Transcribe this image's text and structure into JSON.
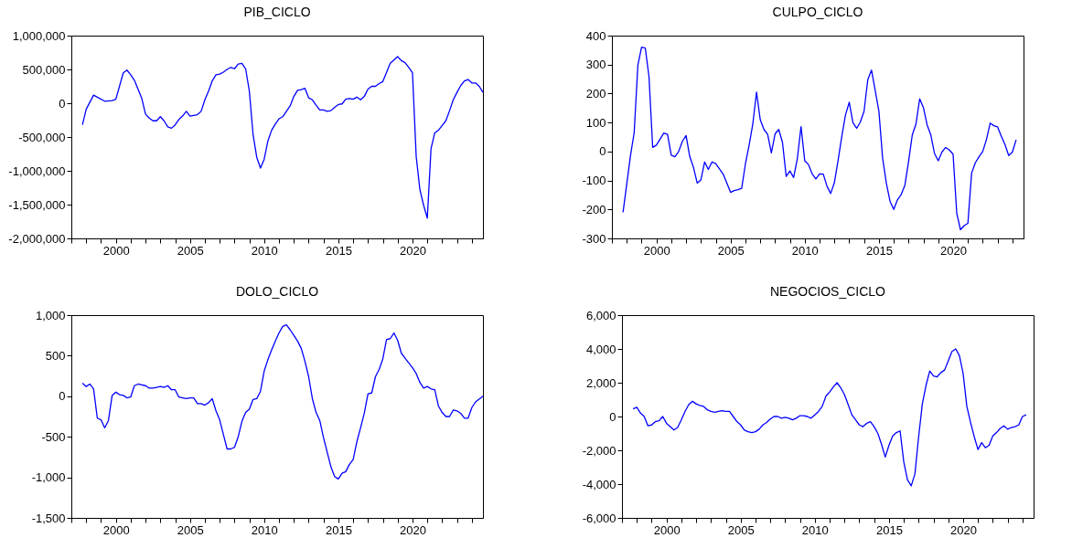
{
  "chart_data": [
    {
      "type": "line",
      "title": "PIB_CICLO",
      "xlim": [
        1997,
        2024.75
      ],
      "ylim": [
        -2000000,
        1000000
      ],
      "yticks": [
        {
          "value": -2000000,
          "label": "-2,000,000"
        },
        {
          "value": -1500000,
          "label": "-1,500,000"
        },
        {
          "value": -1000000,
          "label": "-1,000,000"
        },
        {
          "value": -500000,
          "label": "-500,000"
        },
        0,
        {
          "value": 500000,
          "label": "500,000"
        },
        {
          "value": 1000000,
          "label": "1,000,000"
        }
      ],
      "grid": false,
      "xticks": [
        {
          "value": 1997,
          "label": null
        },
        {
          "value": 1998,
          "label": null
        },
        {
          "value": 1999,
          "label": null
        },
        2000,
        {
          "value": 2001,
          "label": null
        },
        {
          "value": 2002,
          "label": null
        },
        {
          "value": 2003,
          "label": null
        },
        {
          "value": 2004,
          "label": null
        },
        2005,
        {
          "value": 2006,
          "label": null
        },
        {
          "value": 2007,
          "label": null
        },
        {
          "value": 2008,
          "label": null
        },
        {
          "value": 2009,
          "label": null
        },
        2010,
        {
          "value": 2011,
          "label": null
        },
        {
          "value": 2012,
          "label": null
        },
        {
          "value": 2013,
          "label": null
        },
        {
          "value": 2014,
          "label": null
        },
        2015,
        {
          "value": 2016,
          "label": null
        },
        {
          "value": 2017,
          "label": null
        },
        {
          "value": 2018,
          "label": null
        },
        {
          "value": 2019,
          "label": null
        },
        2020,
        {
          "value": 2021,
          "label": null
        },
        {
          "value": 2022,
          "label": null
        },
        {
          "value": 2023,
          "label": null
        },
        {
          "value": 2024,
          "label": null
        }
      ],
      "x": [
        1997.75,
        1998,
        1998.5,
        1998.75,
        1999.25,
        1999.75,
        2000,
        2000.5,
        2000.75,
        2001,
        2001.25,
        2001.75,
        2002,
        2002.25,
        2002.5,
        2002.75,
        2003,
        2003.25,
        2003.5,
        2003.75,
        2004,
        2004.25,
        2004.5,
        2004.75,
        2005,
        2005.5,
        2005.75,
        2006,
        2006.25,
        2006.5,
        2006.75,
        2007,
        2007.25,
        2007.5,
        2007.75,
        2008,
        2008.25,
        2008.5,
        2008.75,
        2009,
        2009.25,
        2009.5,
        2009.75,
        2010,
        2010.25,
        2010.5,
        2010.75,
        2011,
        2011.25,
        2011.5,
        2011.75,
        2012,
        2012.25,
        2012.5,
        2012.75,
        2013,
        2013.25,
        2013.5,
        2013.75,
        2014,
        2014.25,
        2014.5,
        2014.75,
        2015,
        2015.25,
        2015.5,
        2015.75,
        2016,
        2016.25,
        2016.5,
        2016.75,
        2017,
        2017.25,
        2017.5,
        2017.75,
        2018,
        2018.5,
        2019,
        2019.25,
        2019.5,
        2019.75,
        2020,
        2020.25,
        2020.5,
        2020.75,
        2021,
        2021.25,
        2021.5,
        2021.75,
        2022,
        2022.25,
        2022.5,
        2022.75,
        2023,
        2023.25,
        2023.5,
        2023.75,
        2024,
        2024.25,
        2024.5,
        2024.75
      ],
      "series": [
        {
          "color": "#0000ff",
          "values": [
            -320000,
            -90000,
            120000,
            90000,
            30000,
            40000,
            60000,
            450000,
            490000,
            420000,
            340000,
            70000,
            -160000,
            -220000,
            -260000,
            -260000,
            -200000,
            -260000,
            -350000,
            -370000,
            -320000,
            -240000,
            -190000,
            -120000,
            -190000,
            -170000,
            -120000,
            50000,
            180000,
            330000,
            420000,
            430000,
            460000,
            500000,
            530000,
            510000,
            580000,
            590000,
            510000,
            180000,
            -460000,
            -800000,
            -960000,
            -830000,
            -560000,
            -400000,
            -310000,
            -230000,
            -200000,
            -120000,
            -40000,
            100000,
            190000,
            200000,
            220000,
            80000,
            50000,
            -30000,
            -100000,
            -100000,
            -120000,
            -110000,
            -60000,
            -20000,
            -10000,
            60000,
            70000,
            60000,
            90000,
            50000,
            100000,
            210000,
            250000,
            250000,
            290000,
            320000,
            590000,
            690000,
            630000,
            600000,
            530000,
            450000,
            -790000,
            -1280000,
            -1510000,
            -1700000,
            -670000,
            -440000,
            -400000,
            -330000,
            -260000,
            -110000,
            50000,
            160000,
            260000,
            330000,
            350000,
            300000,
            300000,
            250000,
            160000
          ]
        }
      ]
    },
    {
      "type": "line",
      "title": "CULPO_CICLO",
      "xlim": [
        1997,
        2024.75
      ],
      "ylim": [
        -300,
        400
      ],
      "yticks": [
        {
          "value": -300,
          "label": "-300"
        },
        {
          "value": -200,
          "label": "-200"
        },
        {
          "value": -100,
          "label": "-100"
        },
        0,
        100,
        200,
        300,
        400
      ],
      "grid": false,
      "xticks": [
        {
          "value": 1997,
          "label": null
        },
        {
          "value": 1998,
          "label": null
        },
        {
          "value": 1999,
          "label": null
        },
        2000,
        {
          "value": 2001,
          "label": null
        },
        {
          "value": 2002,
          "label": null
        },
        {
          "value": 2003,
          "label": null
        },
        {
          "value": 2004,
          "label": null
        },
        2005,
        {
          "value": 2006,
          "label": null
        },
        {
          "value": 2007,
          "label": null
        },
        {
          "value": 2008,
          "label": null
        },
        {
          "value": 2009,
          "label": null
        },
        2010,
        {
          "value": 2011,
          "label": null
        },
        {
          "value": 2012,
          "label": null
        },
        {
          "value": 2013,
          "label": null
        },
        {
          "value": 2014,
          "label": null
        },
        2015,
        {
          "value": 2016,
          "label": null
        },
        {
          "value": 2017,
          "label": null
        },
        {
          "value": 2018,
          "label": null
        },
        {
          "value": 2019,
          "label": null
        },
        2020,
        {
          "value": 2021,
          "label": null
        },
        {
          "value": 2022,
          "label": null
        },
        {
          "value": 2023,
          "label": null
        },
        {
          "value": 2024,
          "label": null
        }
      ],
      "x": [
        1997.75,
        1998.25,
        1998.5,
        1998.75,
        1999,
        1999.25,
        1999.5,
        1999.75,
        2000,
        2000.5,
        2000.75,
        2001,
        2001.25,
        2001.5,
        2001.75,
        2002,
        2002.25,
        2002.5,
        2002.75,
        2003,
        2003.25,
        2003.5,
        2003.75,
        2004,
        2004.25,
        2004.5,
        2005,
        2005.25,
        2005.5,
        2005.75,
        2006,
        2006.25,
        2006.5,
        2006.75,
        2007,
        2007.25,
        2007.5,
        2007.75,
        2008,
        2008.25,
        2008.5,
        2008.75,
        2009,
        2009.25,
        2009.5,
        2009.75,
        2010,
        2010.25,
        2010.5,
        2010.75,
        2011,
        2011.25,
        2011.5,
        2011.75,
        2012,
        2012.25,
        2012.5,
        2012.75,
        2013,
        2013.25,
        2013.5,
        2013.75,
        2014,
        2014.25,
        2014.5,
        2014.75,
        2015,
        2015.25,
        2015.5,
        2015.75,
        2016,
        2016.25,
        2016.5,
        2016.75,
        2017,
        2017.25,
        2017.5,
        2017.75,
        2018,
        2018.25,
        2018.5,
        2018.75,
        2019,
        2019.25,
        2019.5,
        2019.75,
        2020,
        2020.25,
        2020.5,
        2020.75,
        2021,
        2021.25,
        2021.5,
        2021.75,
        2022,
        2022.25,
        2022.5,
        2022.75,
        2023,
        2023.25,
        2023.5,
        2023.75,
        2024,
        2024.25
      ],
      "series": [
        {
          "color": "#0000ff",
          "values": [
            -210,
            -15,
            65,
            298,
            360,
            357,
            258,
            14,
            22,
            64,
            59,
            -13,
            -18,
            0,
            35,
            55,
            -18,
            -55,
            -109,
            -98,
            -36,
            -62,
            -36,
            -42,
            -60,
            -78,
            -141,
            -135,
            -132,
            -127,
            -43,
            22,
            95,
            205,
            110,
            76,
            59,
            -5,
            61,
            76,
            31,
            -86,
            -67,
            -90,
            -25,
            86,
            -32,
            -45,
            -77,
            -95,
            -77,
            -78,
            -120,
            -145,
            -107,
            -30,
            53,
            127,
            170,
            99,
            80,
            102,
            139,
            248,
            281,
            211,
            139,
            -23,
            -109,
            -172,
            -200,
            -167,
            -149,
            -117,
            -35,
            57,
            95,
            182,
            152,
            92,
            57,
            -7,
            -32,
            -2,
            14,
            5,
            -9,
            -214,
            -270,
            -256,
            -248,
            -75,
            -39,
            -18,
            0,
            41,
            98,
            89,
            85,
            53,
            24,
            -14,
            -2,
            40
          ]
        }
      ]
    },
    {
      "type": "line",
      "title": "DOLO_CICLO",
      "xlim": [
        1997,
        2024.75
      ],
      "ylim": [
        -1500,
        1000
      ],
      "yticks": [
        {
          "value": -1500,
          "label": "-1,500"
        },
        {
          "value": -1000,
          "label": "-1,000"
        },
        {
          "value": -500,
          "label": "-500"
        },
        0,
        500,
        {
          "value": 1000,
          "label": "1,000"
        }
      ],
      "grid": false,
      "xticks": [
        {
          "value": 1997,
          "label": null
        },
        {
          "value": 1998,
          "label": null
        },
        {
          "value": 1999,
          "label": null
        },
        2000,
        {
          "value": 2001,
          "label": null
        },
        {
          "value": 2002,
          "label": null
        },
        {
          "value": 2003,
          "label": null
        },
        {
          "value": 2004,
          "label": null
        },
        2005,
        {
          "value": 2006,
          "label": null
        },
        {
          "value": 2007,
          "label": null
        },
        {
          "value": 2008,
          "label": null
        },
        {
          "value": 2009,
          "label": null
        },
        2010,
        {
          "value": 2011,
          "label": null
        },
        {
          "value": 2012,
          "label": null
        },
        {
          "value": 2013,
          "label": null
        },
        {
          "value": 2014,
          "label": null
        },
        2015,
        {
          "value": 2016,
          "label": null
        },
        {
          "value": 2017,
          "label": null
        },
        {
          "value": 2018,
          "label": null
        },
        {
          "value": 2019,
          "label": null
        },
        2020,
        {
          "value": 2021,
          "label": null
        },
        {
          "value": 2022,
          "label": null
        },
        {
          "value": 2023,
          "label": null
        },
        {
          "value": 2024,
          "label": null
        }
      ],
      "x": [
        1997.75,
        1998,
        1998.25,
        1998.5,
        1998.75,
        1999,
        1999.25,
        1999.5,
        1999.75,
        2000,
        2000.25,
        2000.5,
        2000.75,
        2001,
        2001.25,
        2001.5,
        2001.75,
        2002,
        2002.25,
        2002.5,
        2002.75,
        2003,
        2003.25,
        2003.5,
        2003.75,
        2004,
        2004.25,
        2004.5,
        2004.75,
        2005,
        2005.25,
        2005.5,
        2005.75,
        2006,
        2006.25,
        2006.5,
        2006.75,
        2007,
        2007.25,
        2007.5,
        2007.75,
        2008,
        2008.25,
        2008.5,
        2008.75,
        2009,
        2009.25,
        2009.5,
        2009.75,
        2010,
        2010.25,
        2010.5,
        2010.75,
        2011,
        2011.25,
        2011.5,
        2011.75,
        2012,
        2012.25,
        2012.5,
        2012.75,
        2013,
        2013.25,
        2013.5,
        2013.75,
        2014,
        2014.25,
        2014.5,
        2014.75,
        2015,
        2015.25,
        2015.5,
        2015.75,
        2016,
        2016.25,
        2016.5,
        2016.75,
        2017,
        2017.25,
        2017.5,
        2017.75,
        2018,
        2018.25,
        2018.5,
        2018.75,
        2019,
        2019.25,
        2019.5,
        2019.75,
        2020,
        2020.25,
        2020.5,
        2020.75,
        2021,
        2021.25,
        2021.5,
        2021.75,
        2022,
        2022.25,
        2022.5,
        2022.75,
        2023,
        2023.25,
        2023.5,
        2023.75,
        2024,
        2024.25,
        2024.75
      ],
      "series": [
        {
          "color": "#0000ff",
          "values": [
            160,
            120,
            150,
            90,
            -270,
            -290,
            -390,
            -300,
            10,
            50,
            20,
            10,
            -20,
            -10,
            130,
            150,
            140,
            130,
            100,
            100,
            110,
            120,
            110,
            130,
            80,
            80,
            -10,
            -20,
            -30,
            -20,
            -20,
            -90,
            -90,
            -110,
            -80,
            -30,
            -180,
            -290,
            -470,
            -650,
            -650,
            -630,
            -500,
            -310,
            -200,
            -160,
            -40,
            -30,
            60,
            310,
            450,
            570,
            680,
            780,
            860,
            880,
            820,
            750,
            680,
            590,
            430,
            240,
            -30,
            -200,
            -300,
            -510,
            -690,
            -870,
            -990,
            -1020,
            -950,
            -930,
            -840,
            -780,
            -560,
            -390,
            -210,
            30,
            40,
            240,
            330,
            460,
            700,
            710,
            780,
            690,
            530,
            470,
            410,
            350,
            280,
            170,
            100,
            120,
            90,
            80,
            -120,
            -200,
            -250,
            -250,
            -170,
            -180,
            -210,
            -270,
            -270,
            -140,
            -70,
            0
          ]
        }
      ]
    },
    {
      "type": "line",
      "title": "NEGOCIOS_CICLO",
      "xlim": [
        1997,
        2024.75
      ],
      "ylim": [
        -6000,
        6000
      ],
      "yticks": [
        {
          "value": -6000,
          "label": "-6,000"
        },
        {
          "value": -4000,
          "label": "-4,000"
        },
        {
          "value": -2000,
          "label": "-2,000"
        },
        0,
        {
          "value": 2000,
          "label": "2,000"
        },
        {
          "value": 4000,
          "label": "4,000"
        },
        {
          "value": 6000,
          "label": "6,000"
        }
      ],
      "grid": false,
      "xticks": [
        {
          "value": 1997,
          "label": null
        },
        {
          "value": 1998,
          "label": null
        },
        {
          "value": 1999,
          "label": null
        },
        2000,
        {
          "value": 2001,
          "label": null
        },
        {
          "value": 2002,
          "label": null
        },
        {
          "value": 2003,
          "label": null
        },
        {
          "value": 2004,
          "label": null
        },
        2005,
        {
          "value": 2006,
          "label": null
        },
        {
          "value": 2007,
          "label": null
        },
        {
          "value": 2008,
          "label": null
        },
        {
          "value": 2009,
          "label": null
        },
        2010,
        {
          "value": 2011,
          "label": null
        },
        {
          "value": 2012,
          "label": null
        },
        {
          "value": 2013,
          "label": null
        },
        {
          "value": 2014,
          "label": null
        },
        2015,
        {
          "value": 2016,
          "label": null
        },
        {
          "value": 2017,
          "label": null
        },
        {
          "value": 2018,
          "label": null
        },
        {
          "value": 2019,
          "label": null
        },
        2020,
        {
          "value": 2021,
          "label": null
        },
        {
          "value": 2022,
          "label": null
        },
        {
          "value": 2023,
          "label": null
        },
        {
          "value": 2024,
          "label": null
        }
      ],
      "x": [
        1997.75,
        1998,
        1998.25,
        1998.5,
        1998.75,
        1999,
        1999.25,
        1999.5,
        1999.75,
        2000,
        2000.25,
        2000.5,
        2000.75,
        2001,
        2001.25,
        2001.5,
        2001.75,
        2002,
        2002.25,
        2002.5,
        2002.75,
        2003,
        2003.25,
        2003.5,
        2003.75,
        2004,
        2004.25,
        2004.5,
        2004.75,
        2005,
        2005.25,
        2005.5,
        2005.75,
        2006,
        2006.25,
        2006.5,
        2006.75,
        2007,
        2007.25,
        2007.5,
        2007.75,
        2008,
        2008.25,
        2008.5,
        2008.75,
        2009,
        2009.25,
        2009.5,
        2009.75,
        2010,
        2010.25,
        2010.5,
        2010.75,
        2011,
        2011.25,
        2011.5,
        2011.75,
        2012,
        2012.25,
        2012.5,
        2012.75,
        2013,
        2013.25,
        2013.5,
        2013.75,
        2014,
        2014.25,
        2014.5,
        2014.75,
        2015,
        2015.25,
        2015.5,
        2015.75,
        2016,
        2016.25,
        2016.5,
        2016.75,
        2017,
        2017.25,
        2017.5,
        2017.75,
        2018,
        2018.25,
        2018.5,
        2018.75,
        2019,
        2019.25,
        2019.5,
        2019.75,
        2020,
        2020.25,
        2020.5,
        2020.75,
        2021,
        2021.25,
        2021.5,
        2021.75,
        2022,
        2022.25,
        2022.5,
        2022.75,
        2023,
        2023.25,
        2023.5,
        2023.75,
        2024,
        2024.25
      ],
      "series": [
        {
          "color": "#0000ff",
          "values": [
            450,
            550,
            200,
            0,
            -550,
            -500,
            -300,
            -250,
            0,
            -400,
            -600,
            -800,
            -650,
            -200,
            300,
            700,
            900,
            750,
            650,
            600,
            400,
            300,
            250,
            300,
            350,
            300,
            300,
            0,
            -300,
            -500,
            -800,
            -900,
            -950,
            -900,
            -750,
            -500,
            -350,
            -150,
            0,
            0,
            -100,
            -50,
            -100,
            -200,
            -100,
            50,
            50,
            0,
            -100,
            100,
            300,
            600,
            1200,
            1450,
            1750,
            2000,
            1700,
            1300,
            700,
            100,
            -200,
            -500,
            -600,
            -400,
            -300,
            -600,
            -1000,
            -1650,
            -2400,
            -1700,
            -1150,
            -950,
            -850,
            -2700,
            -3750,
            -4100,
            -3400,
            -1200,
            750,
            1850,
            2700,
            2400,
            2350,
            2600,
            2750,
            3300,
            3850,
            4000,
            3600,
            2550,
            600,
            -350,
            -1200,
            -1950,
            -1550,
            -1850,
            -1700,
            -1150,
            -950,
            -700,
            -550,
            -750,
            -650,
            -600,
            -500,
            0,
            100
          ]
        }
      ]
    }
  ]
}
